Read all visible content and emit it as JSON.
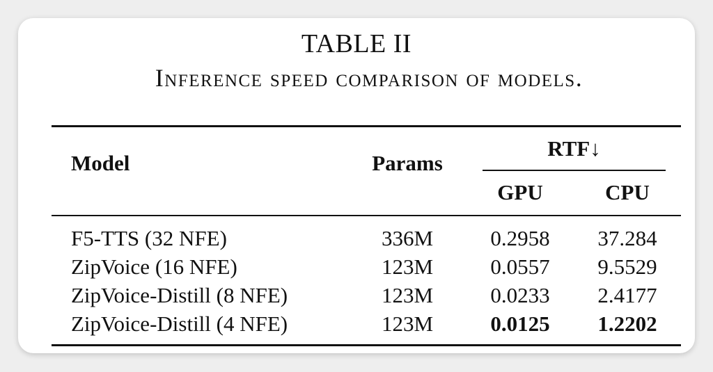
{
  "table": {
    "title": "TABLE II",
    "caption": "Inference speed comparison of models.",
    "headers": {
      "model": "Model",
      "params": "Params",
      "rtf_group": "RTF↓",
      "gpu": "GPU",
      "cpu": "CPU"
    },
    "rows": [
      {
        "model": "F5-TTS (32 NFE)",
        "params": "336M",
        "gpu": "0.2958",
        "cpu": "37.284"
      },
      {
        "model": "ZipVoice (16 NFE)",
        "params": "123M",
        "gpu": "0.0557",
        "cpu": "9.5529"
      },
      {
        "model": "ZipVoice-Distill (8 NFE)",
        "params": "123M",
        "gpu": "0.0233",
        "cpu": "2.4177"
      },
      {
        "model": "ZipVoice-Distill (4 NFE)",
        "params": "123M",
        "gpu": "0.0125",
        "cpu": "1.2202"
      }
    ]
  }
}
